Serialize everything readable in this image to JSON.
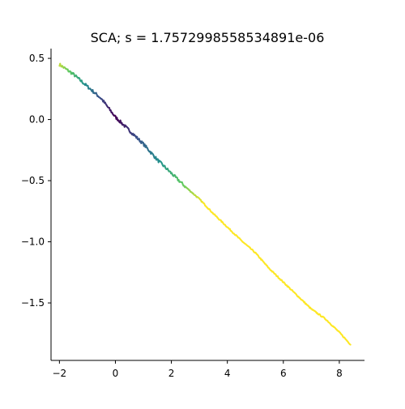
{
  "chart_data": {
    "type": "line",
    "title": "SCA; s = 1.7572998558534891e-06",
    "xlabel": "",
    "ylabel": "",
    "xlim": [
      -2.3,
      8.9
    ],
    "ylim": [
      -1.97,
      0.58
    ],
    "xticks": [
      -2,
      0,
      2,
      4,
      6,
      8
    ],
    "yticks": [
      0.5,
      0.0,
      -0.5,
      -1.0,
      -1.5
    ],
    "xtick_labels": [
      "−2",
      "0",
      "2",
      "4",
      "6",
      "8"
    ],
    "ytick_labels": [
      "0.5",
      "0.0",
      "−0.5",
      "−1.0",
      "−1.5"
    ],
    "grid": false,
    "legend": "none",
    "spines": [
      "left",
      "bottom"
    ],
    "colormap": "viridis",
    "color_encoding": "distance from origin (dark purple near origin, yellow at far ends)",
    "series": [
      {
        "trend_x": [
          -2.0,
          -1.5,
          -1.0,
          -0.5,
          0.0,
          0.5,
          1.0,
          1.5,
          2.0,
          2.5,
          3.0,
          3.5,
          4.0,
          4.5,
          5.0,
          5.5,
          6.0,
          6.5,
          7.0,
          7.5,
          8.0,
          8.4
        ],
        "trend_y": [
          0.45,
          0.37,
          0.27,
          0.17,
          0.02,
          -0.09,
          -0.2,
          -0.33,
          -0.44,
          -0.55,
          -0.65,
          -0.77,
          -0.88,
          -0.99,
          -1.09,
          -1.22,
          -1.33,
          -1.44,
          -1.55,
          -1.63,
          -1.74,
          -1.84
        ]
      }
    ]
  }
}
